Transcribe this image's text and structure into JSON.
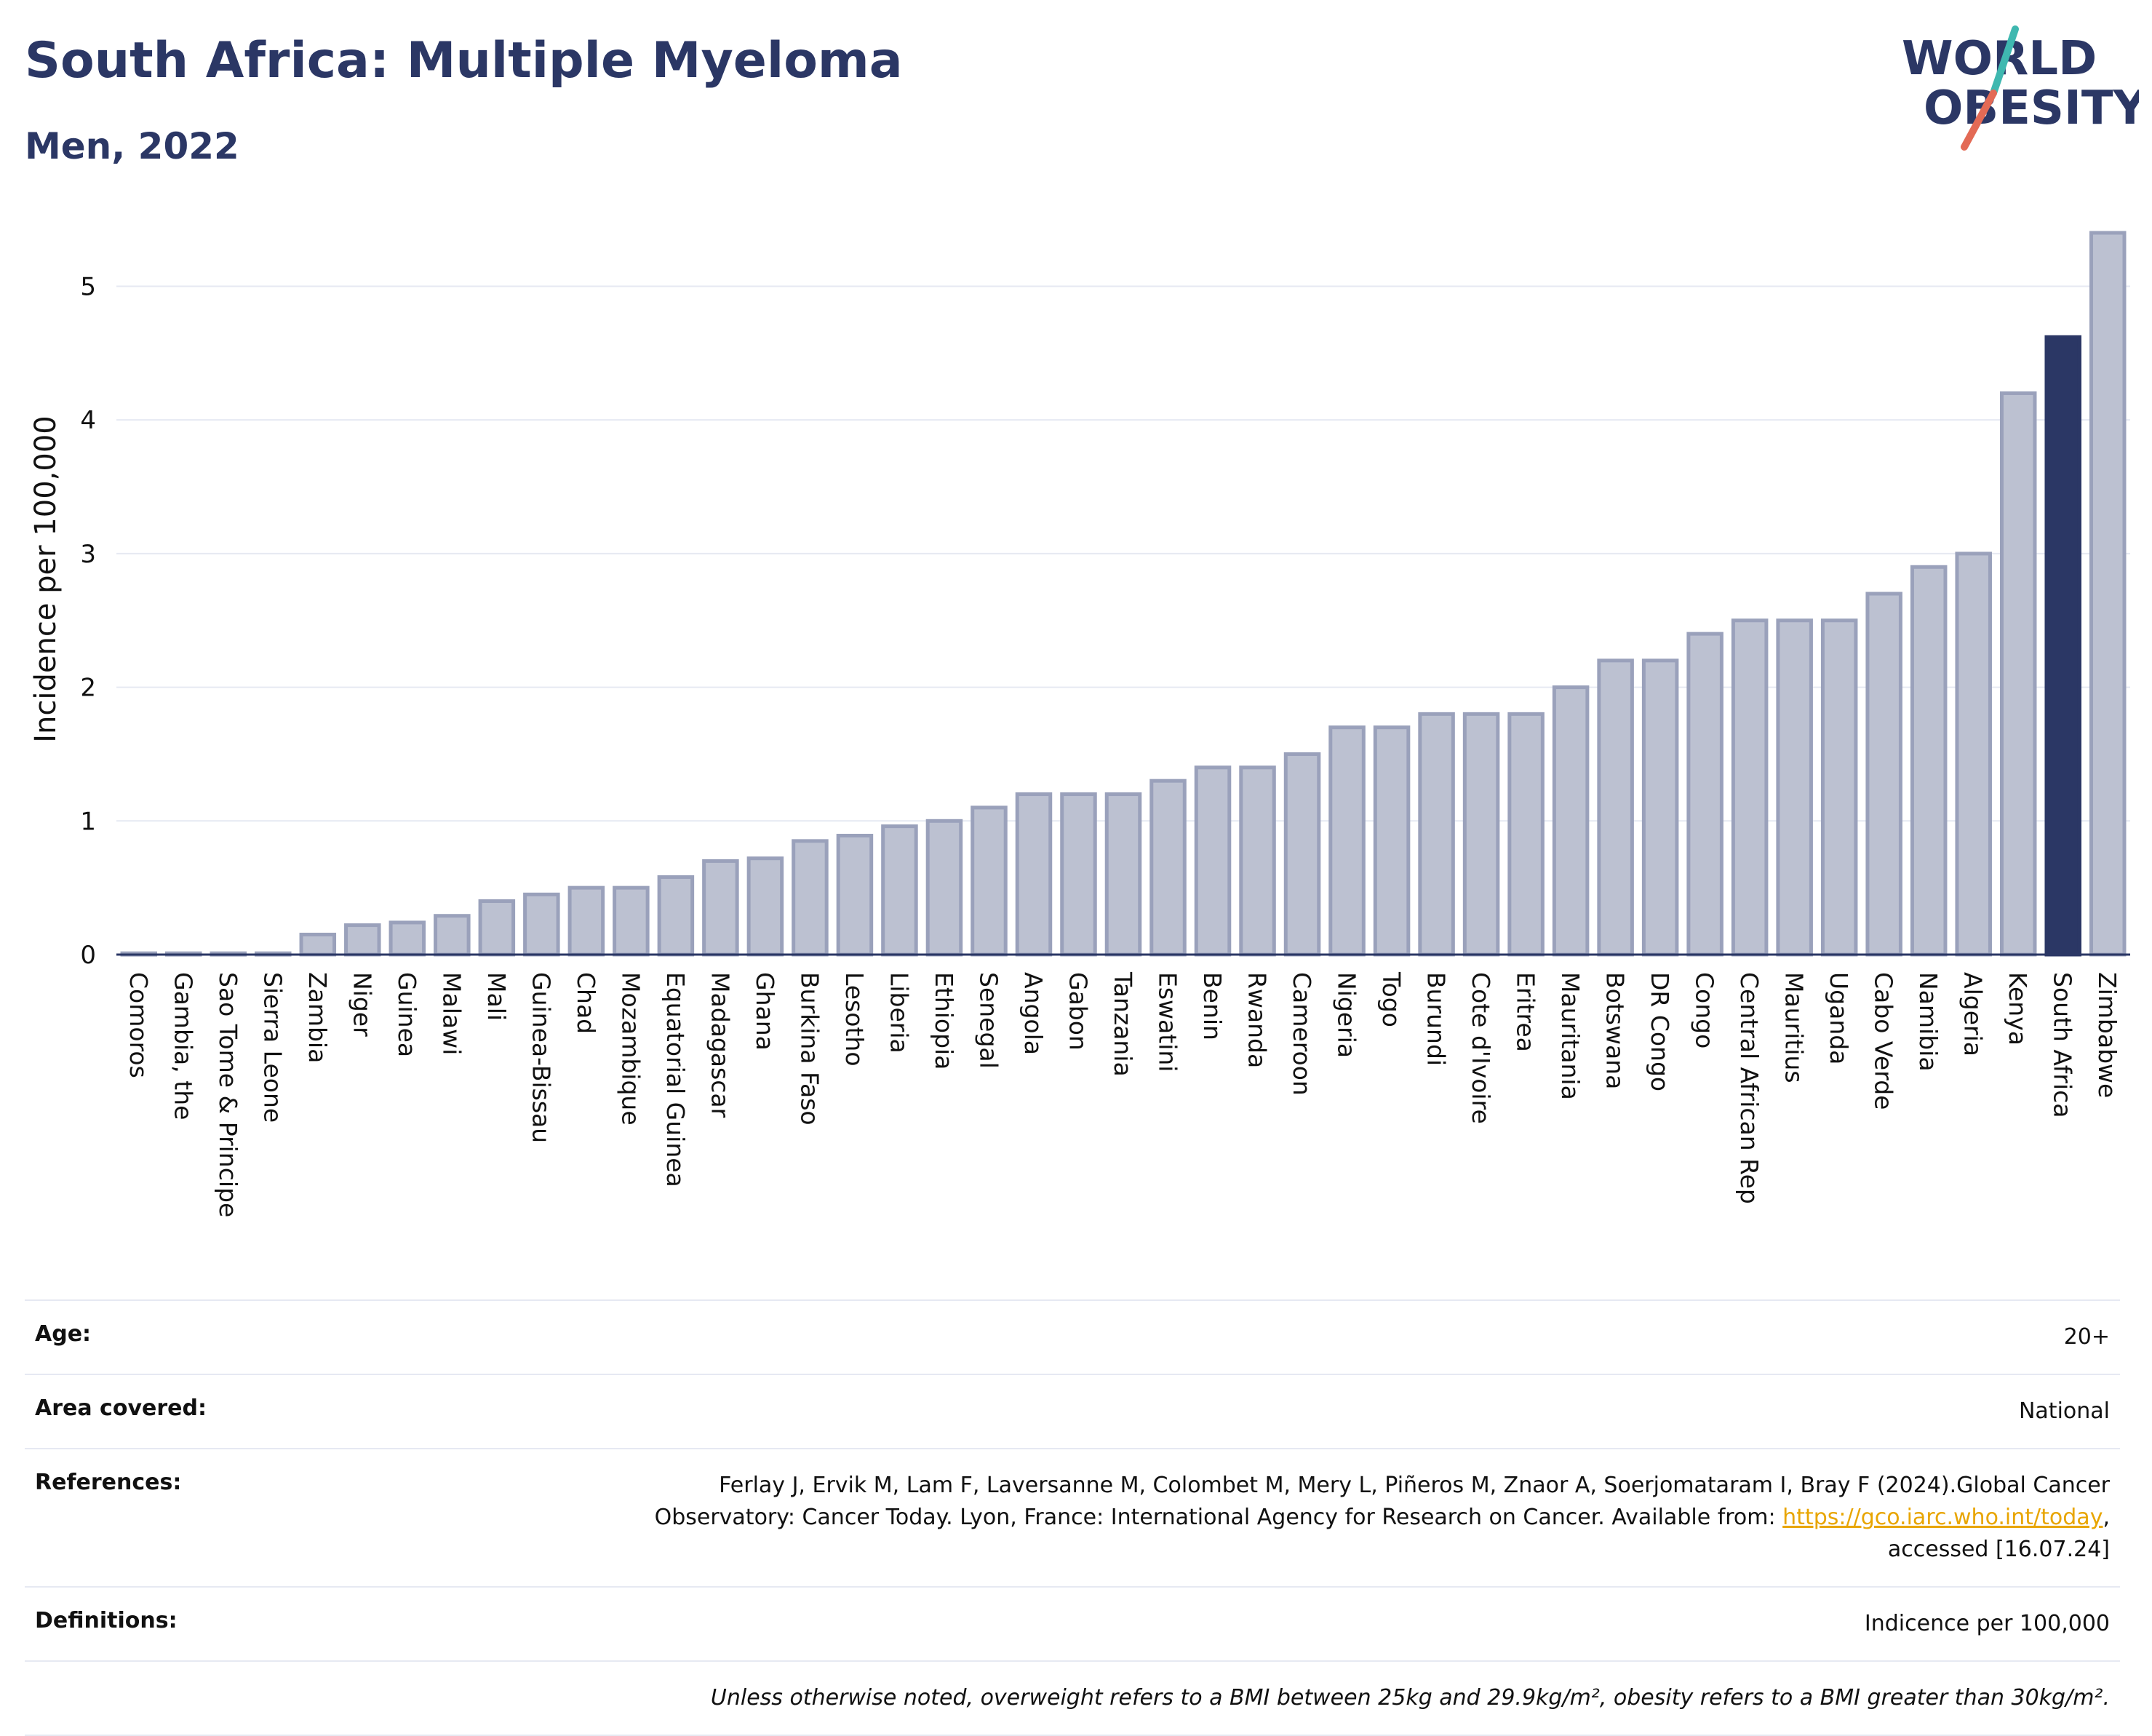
{
  "header": {
    "title": "South Africa: Multiple Myeloma",
    "subtitle": "Men, 2022",
    "logo_line1": "WORLD",
    "logo_line2": "OBESITY"
  },
  "colors": {
    "bar": "#bcc1d1",
    "bar_border": "#9aa1bb",
    "highlight": "#2b3765",
    "title": "#2b3765",
    "logo_slash_top": "#3fb8b0",
    "logo_slash_bottom": "#e36a55",
    "link": "#e8a500"
  },
  "chart_data": {
    "type": "bar",
    "title": "South Africa: Multiple Myeloma",
    "subtitle": "Men, 2022",
    "xlabel": "",
    "ylabel": "Incidence per 100,000",
    "ylim": [
      0,
      5.4
    ],
    "yticks": [
      0,
      1,
      2,
      3,
      4,
      5
    ],
    "grid": true,
    "highlight_category": "South Africa",
    "categories": [
      "Comoros",
      "Gambia, the",
      "Sao Tome & Principe",
      "Sierra Leone",
      "Zambia",
      "Niger",
      "Guinea",
      "Malawi",
      "Mali",
      "Guinea-Bissau",
      "Chad",
      "Mozambique",
      "Equatorial Guinea",
      "Madagascar",
      "Ghana",
      "Burkina Faso",
      "Lesotho",
      "Liberia",
      "Ethiopia",
      "Senegal",
      "Angola",
      "Gabon",
      "Tanzania",
      "Eswatini",
      "Benin",
      "Rwanda",
      "Cameroon",
      "Nigeria",
      "Togo",
      "Burundi",
      "Cote d'Ivoire",
      "Eritrea",
      "Mauritania",
      "Botswana",
      "DR Congo",
      "Congo",
      "Central African Rep",
      "Mauritius",
      "Uganda",
      "Cabo Verde",
      "Namibia",
      "Algeria",
      "Kenya",
      "South Africa",
      "Zimbabwe"
    ],
    "values": [
      0.01,
      0.01,
      0.01,
      0.01,
      0.15,
      0.22,
      0.24,
      0.29,
      0.4,
      0.45,
      0.5,
      0.5,
      0.58,
      0.7,
      0.72,
      0.85,
      0.89,
      0.96,
      1.0,
      1.1,
      1.2,
      1.2,
      1.2,
      1.3,
      1.4,
      1.4,
      1.5,
      1.7,
      1.7,
      1.8,
      1.8,
      1.8,
      2.0,
      2.2,
      2.2,
      2.4,
      2.5,
      2.5,
      2.5,
      2.7,
      2.9,
      3.0,
      4.2,
      4.62,
      5.4
    ]
  },
  "info": {
    "age_label": "Age:",
    "age_value": "20+",
    "area_label": "Area covered:",
    "area_value": "National",
    "references_label": "References:",
    "references_line1": "Ferlay J, Ervik M, Lam F, Laversanne M, Colombet M, Mery L, Piñeros M, Znaor A, Soerjomataram I, Bray F (2024).Global Cancer",
    "references_line2_pre": "Observatory: Cancer Today. Lyon, France: International Agency for Research on Cancer. Available from: ",
    "references_link": "https://gco.iarc.who.int/today",
    "references_line2_post": ",",
    "references_line3": "accessed [16.07.24]",
    "definitions_label": "Definitions:",
    "definitions_value": "Indicence per 100,000",
    "note": "Unless otherwise noted, overweight refers to a BMI between 25kg and 29.9kg/m², obesity refers to a BMI greater than 30kg/m²."
  }
}
